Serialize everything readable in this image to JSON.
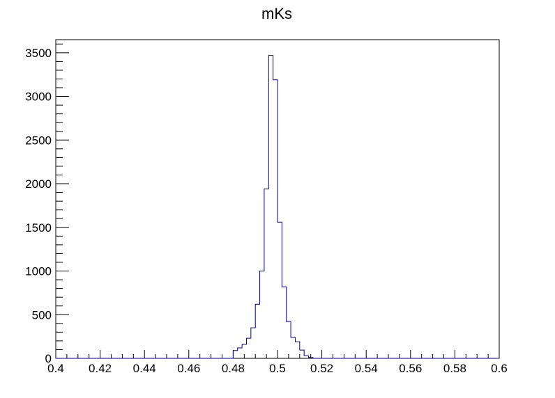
{
  "chart_data": {
    "type": "histogram",
    "title": "mKs",
    "xlabel": "",
    "ylabel": "",
    "xlim": [
      0.4,
      0.6
    ],
    "ylim": [
      0,
      3650
    ],
    "bin_width": 0.002,
    "x_ticks": [
      0.4,
      0.42,
      0.44,
      0.46,
      0.48,
      0.5,
      0.52,
      0.54,
      0.56,
      0.58,
      0.6
    ],
    "x_tick_labels": [
      "0.4",
      "0.42",
      "0.44",
      "0.46",
      "0.48",
      "0.5",
      "0.52",
      "0.54",
      "0.56",
      "0.58",
      "0.6"
    ],
    "y_ticks": [
      0,
      500,
      1000,
      1500,
      2000,
      2500,
      3000,
      3500
    ],
    "y_tick_labels": [
      "0",
      "500",
      "1000",
      "1500",
      "2000",
      "2500",
      "3000",
      "3500"
    ],
    "series": [
      {
        "bins": [
          {
            "x": 0.48,
            "count": 90
          },
          {
            "x": 0.482,
            "count": 120
          },
          {
            "x": 0.484,
            "count": 160
          },
          {
            "x": 0.486,
            "count": 230
          },
          {
            "x": 0.488,
            "count": 350
          },
          {
            "x": 0.49,
            "count": 620
          },
          {
            "x": 0.492,
            "count": 1000
          },
          {
            "x": 0.494,
            "count": 1940
          },
          {
            "x": 0.496,
            "count": 3470
          },
          {
            "x": 0.498,
            "count": 3190
          },
          {
            "x": 0.5,
            "count": 1560
          },
          {
            "x": 0.502,
            "count": 820
          },
          {
            "x": 0.504,
            "count": 420
          },
          {
            "x": 0.506,
            "count": 240
          },
          {
            "x": 0.508,
            "count": 190
          },
          {
            "x": 0.51,
            "count": 95
          },
          {
            "x": 0.512,
            "count": 30
          },
          {
            "x": 0.514,
            "count": 10
          }
        ]
      }
    ],
    "colors": {
      "line": "#000099",
      "axis": "#000000",
      "background": "#ffffff"
    },
    "grid": false,
    "legend": "none"
  }
}
